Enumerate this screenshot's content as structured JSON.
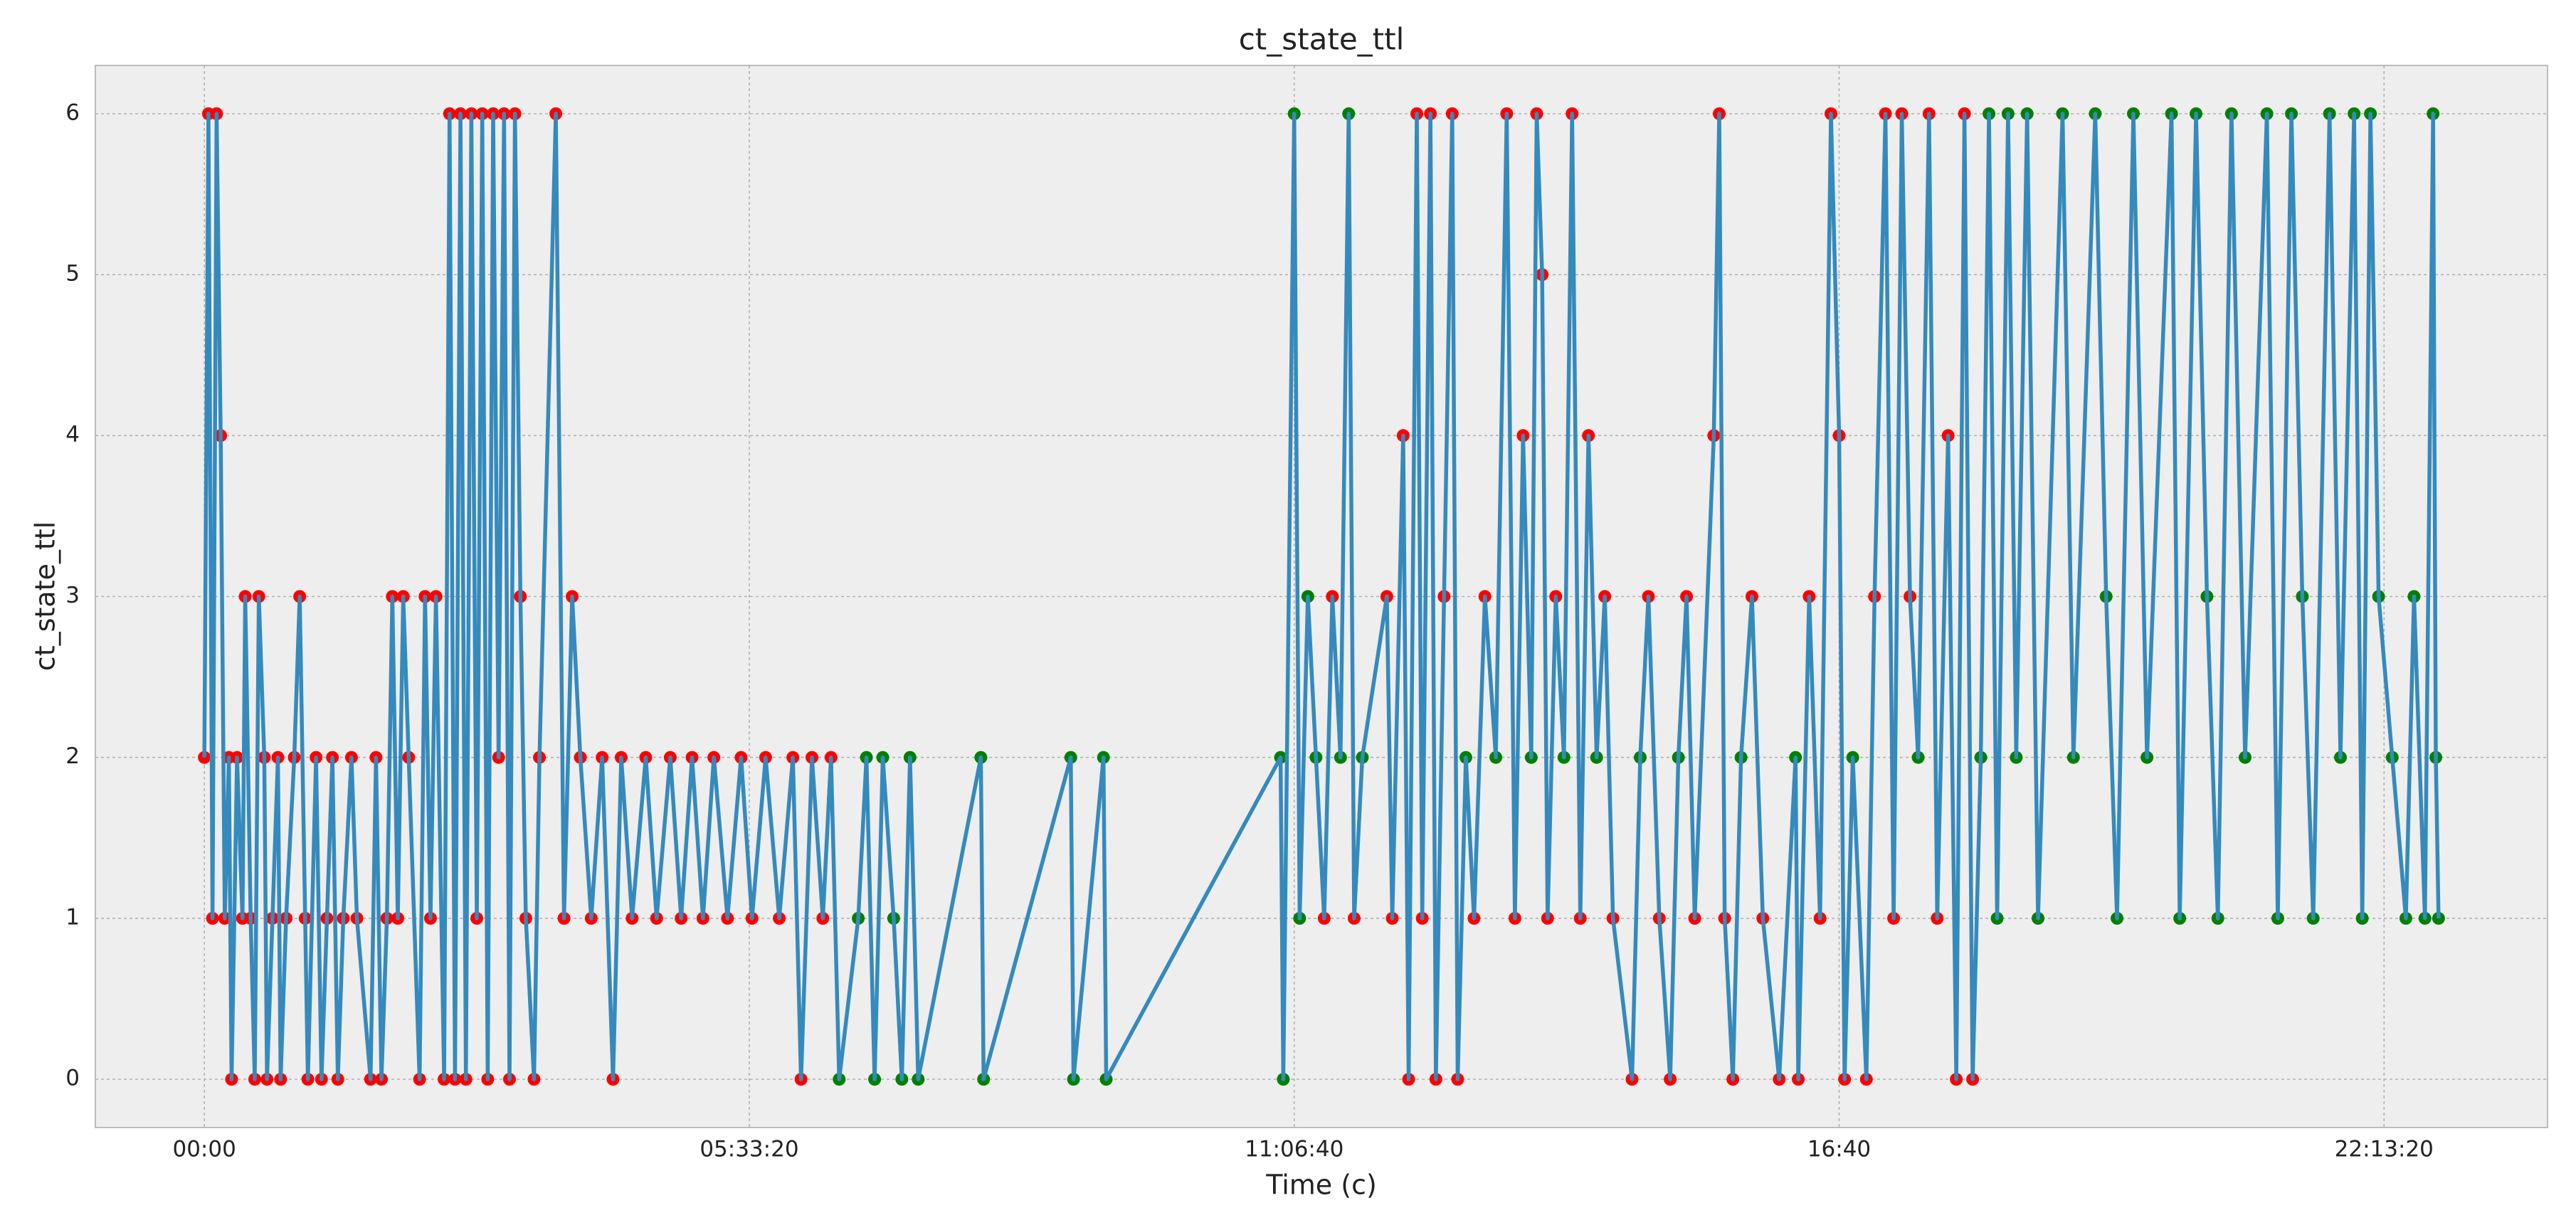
{
  "chart_data": {
    "type": "line",
    "title": "ct_state_ttl",
    "xlabel": "Time (c)",
    "ylabel": "ct_state_ttl",
    "grid": true,
    "xlim": [
      -4000,
      86000
    ],
    "ylim": [
      -0.3,
      6.3
    ],
    "xticks": [
      {
        "value": 0,
        "label": "00:00"
      },
      {
        "value": 20000,
        "label": "05:33:20"
      },
      {
        "value": 40000,
        "label": "11:06:40"
      },
      {
        "value": 60000,
        "label": "16:40"
      },
      {
        "value": 80000,
        "label": "22:13:20"
      }
    ],
    "yticks": [
      0,
      1,
      2,
      3,
      4,
      5,
      6
    ],
    "x": [
      0,
      150,
      300,
      450,
      600,
      750,
      900,
      1000,
      1200,
      1400,
      1500,
      1700,
      1850,
      2000,
      2200,
      2300,
      2500,
      2700,
      2800,
      3000,
      3300,
      3500,
      3700,
      3800,
      4100,
      4300,
      4500,
      4700,
      4900,
      5100,
      5400,
      5600,
      6100,
      6300,
      6500,
      6700,
      6900,
      7100,
      7300,
      7500,
      7900,
      8100,
      8300,
      8500,
      8800,
      9000,
      9200,
      9400,
      9600,
      9800,
      10000,
      10200,
      10400,
      10600,
      10800,
      11000,
      11200,
      11400,
      11600,
      11800,
      12100,
      12300,
      12900,
      13200,
      13500,
      13800,
      14200,
      14600,
      15000,
      15300,
      15700,
      16200,
      16600,
      17100,
      17500,
      17900,
      18300,
      18700,
      19200,
      19700,
      20100,
      20600,
      21100,
      21600,
      21900,
      22300,
      22700,
      23000,
      23300,
      24000,
      24300,
      24600,
      24900,
      25300,
      25600,
      25900,
      26200,
      28500,
      28600,
      31800,
      31900,
      33000,
      33100,
      39500,
      39600,
      40000,
      40200,
      40500,
      40800,
      41100,
      41400,
      41700,
      42000,
      42200,
      42500,
      43400,
      43600,
      44000,
      44200,
      44500,
      44700,
      45000,
      45200,
      45500,
      45800,
      46000,
      46300,
      46600,
      47000,
      47400,
      47800,
      48100,
      48400,
      48700,
      48900,
      49100,
      49300,
      49600,
      49900,
      50200,
      50500,
      50800,
      51100,
      51400,
      51700,
      52400,
      52700,
      53000,
      53400,
      53800,
      54100,
      54400,
      54700,
      55400,
      55600,
      55800,
      56100,
      56400,
      56800,
      57200,
      57800,
      58400,
      58500,
      58900,
      59300,
      59700,
      60000,
      60200,
      60500,
      61000,
      61300,
      61700,
      62000,
      62300,
      62600,
      62900,
      63300,
      63600,
      64000,
      64300,
      64600,
      64900,
      65200,
      65500,
      65800,
      66200,
      66500,
      66900,
      67300,
      68200,
      68600,
      69400,
      69800,
      70200,
      70800,
      71300,
      72200,
      72500,
      73100,
      73500,
      73900,
      74400,
      74900,
      75700,
      76100,
      76600,
      77000,
      77400,
      78000,
      78400,
      78900,
      79200,
      79500,
      79800,
      80300,
      80800,
      81100,
      81500,
      81800,
      81900,
      82000
    ],
    "series": [
      {
        "color": "#348abd",
        "values": [
          2,
          6,
          1,
          6,
          4,
          1,
          2,
          0,
          2,
          1,
          3,
          1,
          0,
          3,
          2,
          0,
          1,
          2,
          0,
          1,
          2,
          3,
          1,
          0,
          2,
          0,
          1,
          2,
          0,
          1,
          2,
          1,
          0,
          2,
          0,
          1,
          3,
          1,
          3,
          2,
          0,
          3,
          1,
          3,
          0,
          6,
          0,
          6,
          0,
          6,
          1,
          6,
          0,
          6,
          2,
          6,
          0,
          6,
          3,
          1,
          0,
          2,
          6,
          1,
          3,
          2,
          1,
          2,
          0,
          2,
          1,
          2,
          1,
          2,
          1,
          2,
          1,
          2,
          1,
          2,
          1,
          2,
          1,
          2,
          0,
          2,
          1,
          2,
          0,
          1,
          2,
          0,
          2,
          1,
          0,
          2,
          0,
          2,
          0,
          2,
          0,
          2,
          0,
          2,
          0,
          6,
          1,
          3,
          2,
          1,
          3,
          2,
          6,
          1,
          2,
          3,
          1,
          4,
          0,
          6,
          1,
          6,
          0,
          3,
          6,
          0,
          2,
          1,
          3,
          2,
          6,
          1,
          4,
          2,
          6,
          5,
          1,
          3,
          2,
          6,
          1,
          4,
          2,
          3,
          1,
          0,
          2,
          3,
          1,
          0,
          2,
          3,
          1,
          4,
          6,
          1,
          0,
          2,
          3,
          1,
          0,
          2,
          0,
          3,
          1,
          6,
          4,
          0,
          2,
          0,
          3,
          6,
          1,
          6,
          3,
          2,
          6,
          1,
          4,
          0,
          6,
          0,
          2,
          6,
          1,
          6,
          2,
          6,
          1,
          6,
          2,
          6,
          3,
          1,
          6,
          2,
          6,
          1,
          6,
          3,
          1,
          6,
          2,
          6,
          1,
          6,
          3,
          1,
          6,
          2,
          6,
          1,
          6,
          3,
          2,
          1,
          3,
          1,
          6,
          2,
          1
        ],
        "marker_colors": [
          "red",
          "red",
          "red",
          "red",
          "red",
          "red",
          "red",
          "red",
          "red",
          "red",
          "red",
          "red",
          "red",
          "red",
          "red",
          "red",
          "red",
          "red",
          "red",
          "red",
          "red",
          "red",
          "red",
          "red",
          "red",
          "red",
          "red",
          "red",
          "red",
          "red",
          "red",
          "red",
          "red",
          "red",
          "red",
          "red",
          "red",
          "red",
          "red",
          "red",
          "red",
          "red",
          "red",
          "red",
          "red",
          "red",
          "red",
          "red",
          "red",
          "red",
          "red",
          "red",
          "red",
          "red",
          "red",
          "red",
          "red",
          "red",
          "red",
          "red",
          "red",
          "red",
          "red",
          "red",
          "red",
          "red",
          "red",
          "red",
          "red",
          "red",
          "red",
          "red",
          "red",
          "red",
          "red",
          "red",
          "red",
          "red",
          "red",
          "red",
          "red",
          "red",
          "red",
          "red",
          "red",
          "red",
          "red",
          "red",
          "green",
          "green",
          "green",
          "green",
          "green",
          "green",
          "green",
          "green",
          "green",
          "green",
          "green",
          "green",
          "green",
          "green",
          "green",
          "green",
          "green",
          "green",
          "green",
          "green",
          "green",
          "red",
          "red",
          "green",
          "green",
          "red",
          "green",
          "red",
          "red",
          "red",
          "red",
          "red",
          "red",
          "red",
          "red",
          "red",
          "red",
          "red",
          "green",
          "red",
          "red",
          "green",
          "red",
          "red",
          "red",
          "green",
          "red",
          "red",
          "red",
          "red",
          "green",
          "red",
          "red",
          "red",
          "green",
          "red",
          "red",
          "red",
          "green",
          "red",
          "red",
          "red",
          "green",
          "red",
          "red",
          "red",
          "red",
          "red",
          "red",
          "green",
          "red",
          "red",
          "red",
          "green",
          "red",
          "red",
          "red",
          "red",
          "red",
          "red",
          "green",
          "red",
          "red",
          "red",
          "red",
          "red",
          "red",
          "green",
          "red",
          "red",
          "red",
          "red",
          "red",
          "red",
          "green",
          "green",
          "green",
          "green",
          "green",
          "green",
          "green",
          "green",
          "green",
          "green",
          "green",
          "green",
          "green",
          "green",
          "green",
          "green",
          "green",
          "green",
          "green",
          "green",
          "green",
          "green",
          "green",
          "green",
          "green",
          "green",
          "green",
          "green",
          "green",
          "green",
          "green",
          "green",
          "green",
          "green",
          "green",
          "green",
          "green",
          "green",
          "green"
        ]
      }
    ]
  }
}
